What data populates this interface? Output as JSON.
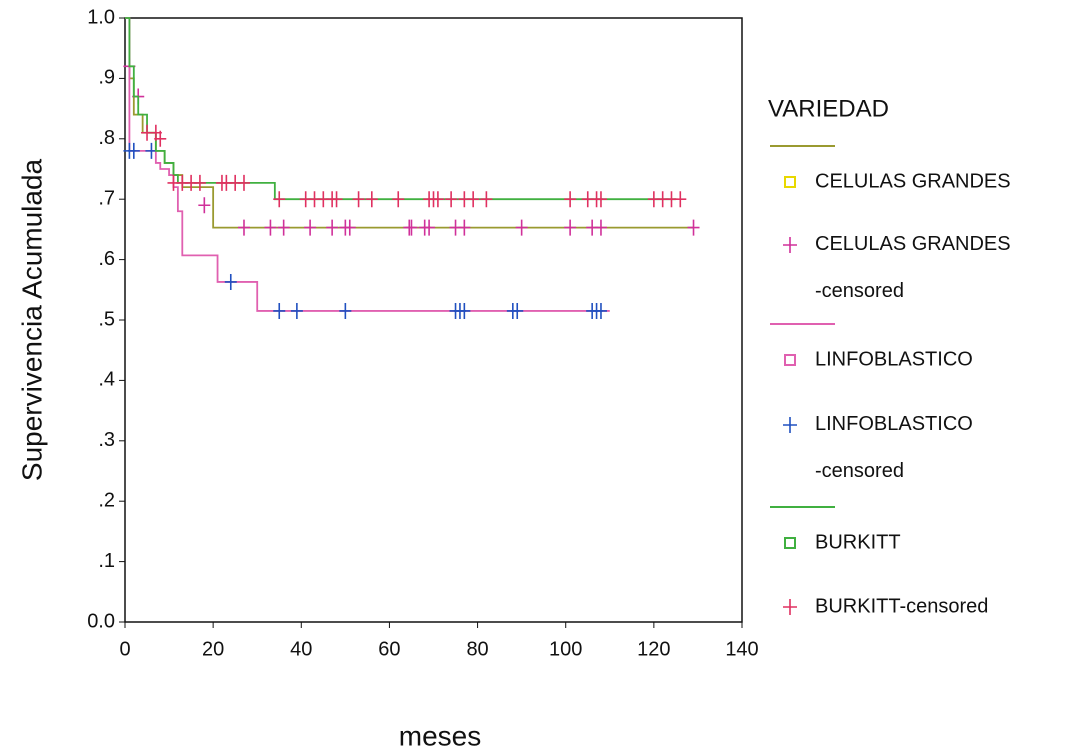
{
  "chart_data": {
    "type": "line",
    "x_label": "meses",
    "y_label": "Supervivencia Acumulada",
    "legend_title": "VARIEDAD",
    "legend": "right",
    "xlim": [
      0,
      140
    ],
    "ylim": [
      0,
      1
    ],
    "xticks": [
      0,
      20,
      40,
      60,
      80,
      100,
      120,
      140
    ],
    "yticks": [
      {
        "value": 0,
        "label": "0.0"
      },
      {
        "value": 0.1,
        "label": ".1"
      },
      {
        "value": 0.2,
        "label": ".2"
      },
      {
        "value": 0.3,
        "label": ".3"
      },
      {
        "value": 0.4,
        "label": ".4"
      },
      {
        "value": 0.5,
        "label": ".5"
      },
      {
        "value": 0.6,
        "label": ".6"
      },
      {
        "value": 0.7,
        "label": ".7"
      },
      {
        "value": 0.8,
        "label": ".8"
      },
      {
        "value": 0.9,
        "label": ".9"
      },
      {
        "value": 1,
        "label": "1.0"
      }
    ],
    "series": [
      {
        "name": "CELULAS GRANDES",
        "color": "#9a9a30",
        "legend_marker_color": "#e8d800",
        "drawstyle": "steps-post",
        "x": [
          0,
          1,
          2,
          4,
          7,
          9,
          11,
          13,
          20,
          129
        ],
        "values": [
          1.0,
          0.9,
          0.84,
          0.81,
          0.78,
          0.76,
          0.74,
          0.72,
          0.653,
          0.653
        ]
      },
      {
        "name": "CELULAS GRANDES-censored",
        "color": "#d0309a",
        "marker": "+",
        "x": [
          1,
          3,
          18,
          27,
          33,
          36,
          42,
          47,
          50,
          51,
          64.5,
          65,
          68,
          69,
          75,
          77,
          90,
          101,
          106,
          108,
          129
        ],
        "values": [
          0.92,
          0.87,
          0.69,
          0.653,
          0.653,
          0.653,
          0.653,
          0.653,
          0.653,
          0.653,
          0.653,
          0.653,
          0.653,
          0.653,
          0.653,
          0.653,
          0.653,
          0.653,
          0.653,
          0.653,
          0.653
        ]
      },
      {
        "name": "LINFOBLASTICO",
        "color": "#e060b0",
        "legend_marker_color": "#e060b0",
        "drawstyle": "steps-post",
        "x": [
          0,
          1,
          7,
          8,
          10,
          11,
          12,
          13,
          21,
          30,
          110
        ],
        "values": [
          1.0,
          0.78,
          0.76,
          0.75,
          0.74,
          0.72,
          0.68,
          0.607,
          0.563,
          0.515,
          0.515
        ]
      },
      {
        "name": "LINFOBLASTICO-censored",
        "color": "#2050c0",
        "marker": "+",
        "x": [
          1,
          2,
          6,
          24,
          35,
          39,
          50,
          75,
          76,
          77,
          88,
          89,
          106,
          107,
          108
        ],
        "values": [
          0.78,
          0.78,
          0.78,
          0.563,
          0.515,
          0.515,
          0.515,
          0.515,
          0.515,
          0.515,
          0.515,
          0.515,
          0.515,
          0.515,
          0.515
        ]
      },
      {
        "name": "BURKITT",
        "color": "#40b040",
        "legend_marker_color": "#40b040",
        "drawstyle": "steps-post",
        "x": [
          0,
          1,
          2,
          3,
          5,
          7,
          9,
          11,
          12,
          34,
          125
        ],
        "values": [
          1.0,
          0.92,
          0.87,
          0.84,
          0.81,
          0.78,
          0.76,
          0.74,
          0.727,
          0.7,
          0.7
        ]
      },
      {
        "name": "BURKITT-censored",
        "color": "#e03060",
        "marker": "+",
        "x": [
          5,
          7,
          8,
          11,
          13,
          15,
          17,
          22,
          23,
          25,
          27,
          35,
          41,
          43,
          45,
          47,
          48,
          53,
          56,
          62,
          69,
          70,
          71,
          74,
          77,
          79,
          82,
          101,
          105,
          107,
          108,
          120,
          122,
          124,
          126
        ],
        "values": [
          0.81,
          0.81,
          0.8,
          0.727,
          0.727,
          0.727,
          0.727,
          0.727,
          0.727,
          0.727,
          0.727,
          0.7,
          0.7,
          0.7,
          0.7,
          0.7,
          0.7,
          0.7,
          0.7,
          0.7,
          0.7,
          0.7,
          0.7,
          0.7,
          0.7,
          0.7,
          0.7,
          0.7,
          0.7,
          0.7,
          0.7,
          0.7,
          0.7,
          0.7,
          0.7
        ]
      }
    ]
  }
}
